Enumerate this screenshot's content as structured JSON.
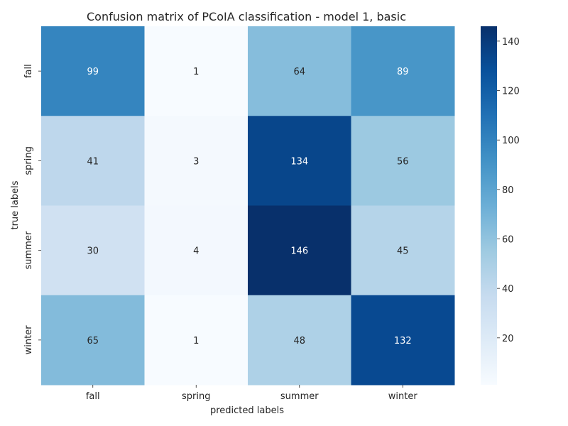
{
  "chart_data": {
    "type": "heatmap",
    "title": "Confusion matrix of PCoIA classification - model 1, basic",
    "xlabel": "predicted labels",
    "ylabel": "true labels",
    "x_categories": [
      "fall",
      "spring",
      "summer",
      "winter"
    ],
    "y_categories": [
      "fall",
      "spring",
      "summer",
      "winter"
    ],
    "values": [
      [
        99,
        1,
        64,
        89
      ],
      [
        41,
        3,
        134,
        56
      ],
      [
        30,
        4,
        146,
        45
      ],
      [
        65,
        1,
        48,
        132
      ]
    ],
    "colormap": "Blues",
    "color_range": [
      1,
      146
    ],
    "colorbar_ticks": [
      20,
      40,
      60,
      80,
      100,
      120,
      140
    ],
    "grid": false,
    "colorbar_position": "right"
  }
}
